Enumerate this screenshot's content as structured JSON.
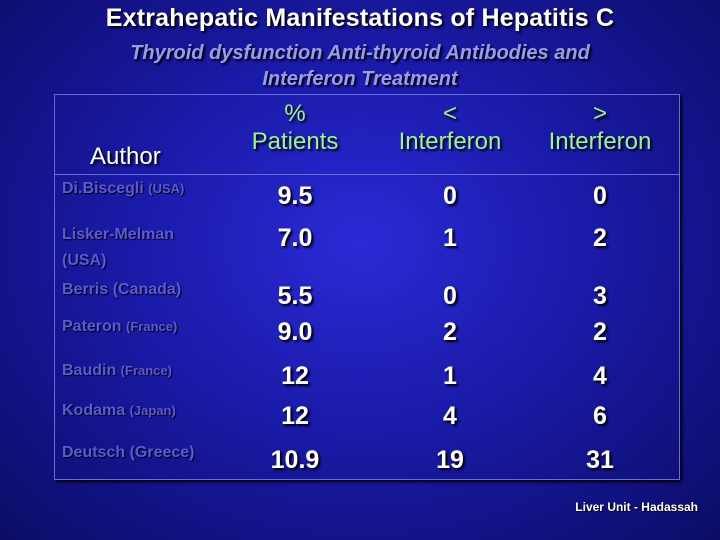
{
  "title": "Extrahepatic Manifestations of Hepatitis C",
  "subtitle": {
    "line1": "Thyroid dysfunction  Anti-thyroid Antibodies  and",
    "line2": "Interferon Treatment"
  },
  "table": {
    "headers": {
      "author": "Author",
      "pct_line1": "%",
      "pct_line2": "Patients",
      "before_line1": "<",
      "before_line2": "Interferon",
      "after_line1": ">",
      "after_line2": "Interferon"
    },
    "rows": [
      {
        "author_name": "Di.Biscegli",
        "author_country": "(USA)",
        "patients_pct": "9.5",
        "before_ifn": "0",
        "after_ifn": "0"
      },
      {
        "author_name": "Lisker-Melman",
        "author_country": "(USA)",
        "patients_pct": "7.0",
        "before_ifn": "1",
        "after_ifn": "2"
      },
      {
        "author_name": "Berris",
        "author_country": "(Canada)",
        "patients_pct": "5.5",
        "before_ifn": "0",
        "after_ifn": "3"
      },
      {
        "author_name": "Pateron",
        "author_country": "(France)",
        "patients_pct": "9.0",
        "before_ifn": "2",
        "after_ifn": "2"
      },
      {
        "author_name": "Baudin",
        "author_country": "(France)",
        "patients_pct": "12",
        "before_ifn": "1",
        "after_ifn": "4"
      },
      {
        "author_name": "Kodama",
        "author_country": "(Japan)",
        "patients_pct": "12",
        "before_ifn": "4",
        "after_ifn": "6"
      },
      {
        "author_name": "Deutsch",
        "author_country": "(Greece)",
        "patients_pct": "10.9",
        "before_ifn": "19",
        "after_ifn": "31"
      }
    ]
  },
  "credit": "Liver Unit - Hadassah",
  "colors": {
    "background": "#1a1aa8",
    "header_green": "#9cf29c",
    "author_text": "#5a5ad8",
    "subtitle_text": "#9a9aee"
  }
}
